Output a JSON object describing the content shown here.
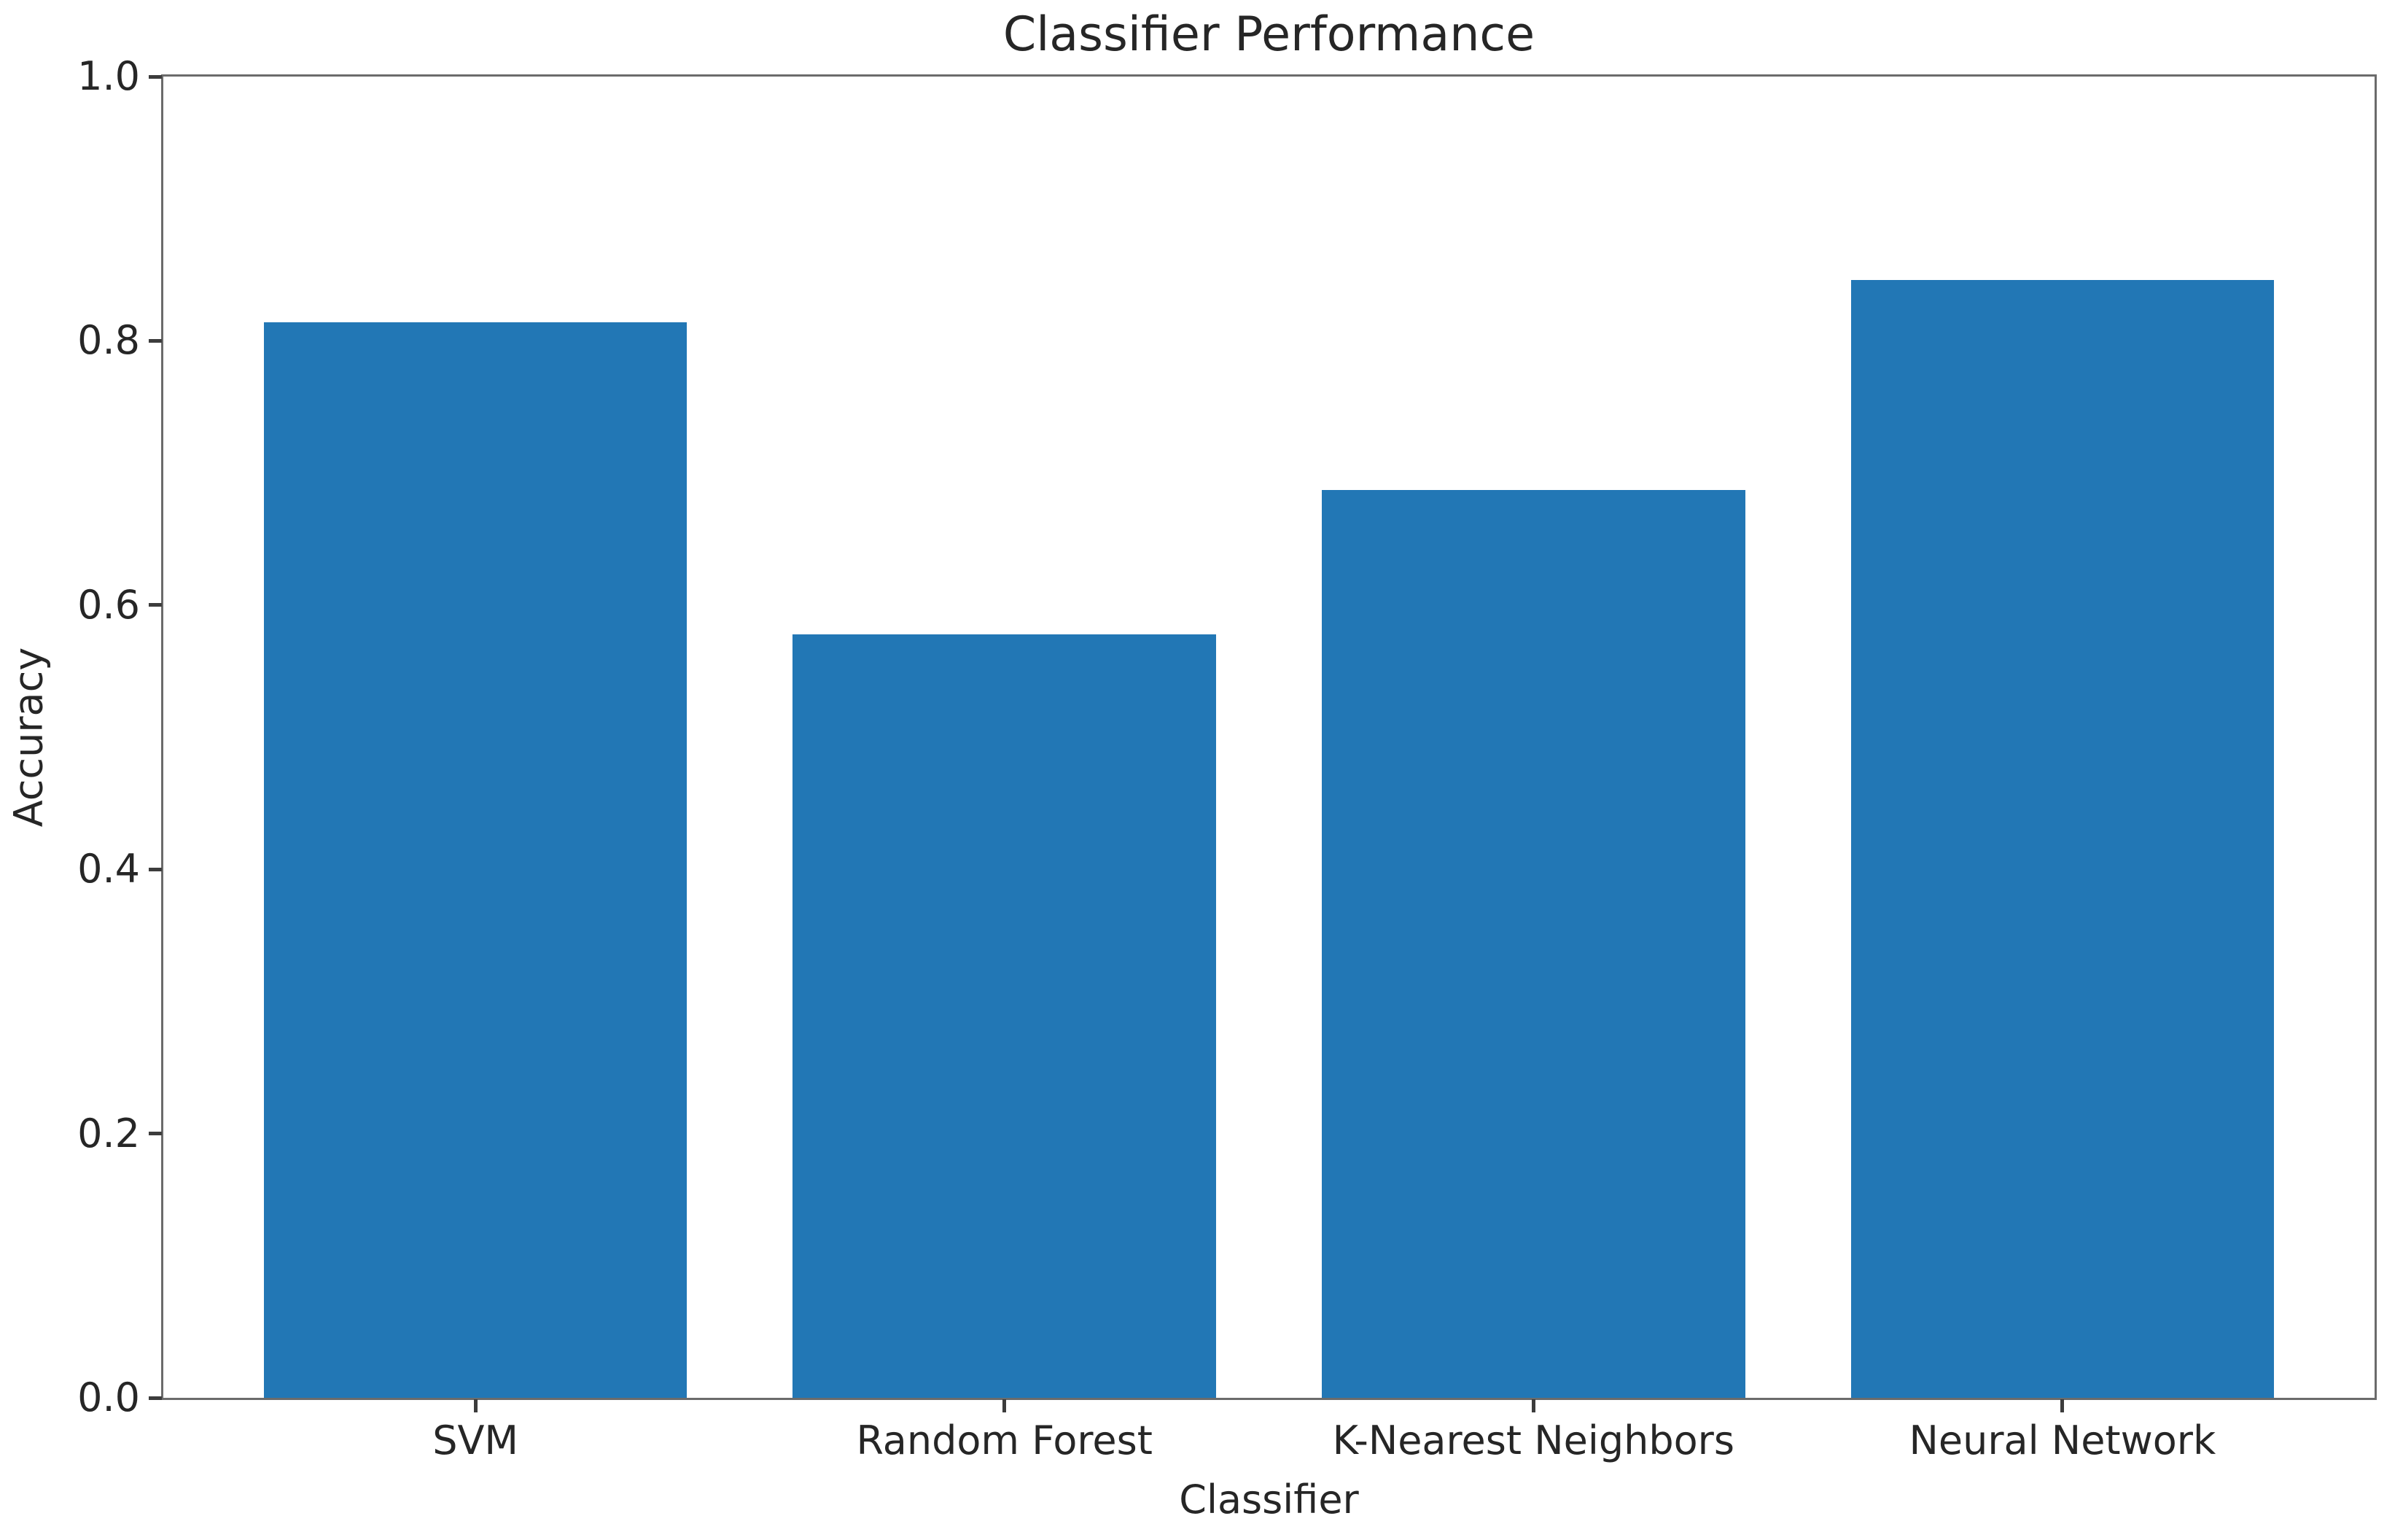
{
  "chart_data": {
    "type": "bar",
    "title": "Classifier Performance",
    "xlabel": "Classifier",
    "ylabel": "Accuracy",
    "categories": [
      "SVM",
      "Random Forest",
      "K-Nearest Neighbors",
      "Neural Network"
    ],
    "values": [
      0.814,
      0.578,
      0.687,
      0.846
    ],
    "ytick_labels": [
      "0.0",
      "0.2",
      "0.4",
      "0.6",
      "0.8",
      "1.0"
    ],
    "ytick_values": [
      0.0,
      0.2,
      0.4,
      0.6,
      0.8,
      1.0
    ],
    "ylim": [
      0.0,
      1.0
    ],
    "grid": false,
    "legend": "none",
    "colors": {
      "bar_fill": "#2277b5",
      "text": "#262626",
      "spine": "#6b6b6b",
      "tick": "#3c3c3c",
      "background": "#ffffff"
    }
  }
}
